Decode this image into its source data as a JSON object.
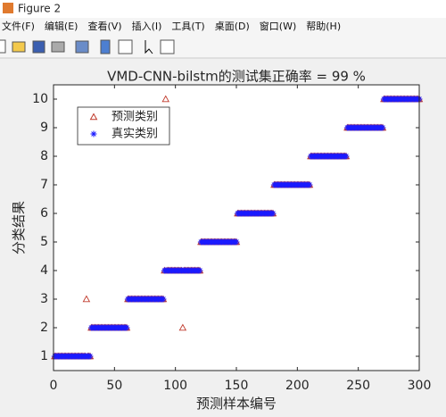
{
  "window": {
    "title": "Figure 2",
    "menu": [
      "文件(F)",
      "编辑(E)",
      "查看(V)",
      "插入(I)",
      "工具(T)",
      "桌面(D)",
      "窗口(W)",
      "帮助(H)"
    ]
  },
  "chart_data": {
    "type": "scatter",
    "title": "VMD-CNN-bilstm的测试集正确率 = 99 %",
    "xlabel": "预测样本编号",
    "ylabel": "分类结果",
    "xlim": [
      0,
      300
    ],
    "ylim": [
      0.5,
      10.5
    ],
    "xticks": [
      0,
      50,
      100,
      150,
      200,
      250,
      300
    ],
    "yticks": [
      1,
      2,
      3,
      4,
      5,
      6,
      7,
      8,
      9,
      10
    ],
    "legend": "top-left",
    "x": [
      1,
      2,
      3,
      4,
      5,
      6,
      7,
      8,
      9,
      10,
      11,
      12,
      13,
      14,
      15,
      16,
      17,
      18,
      19,
      20,
      21,
      22,
      23,
      24,
      25,
      26,
      27,
      28,
      29,
      30,
      31,
      32,
      33,
      34,
      35,
      36,
      37,
      38,
      39,
      40,
      41,
      42,
      43,
      44,
      45,
      46,
      47,
      48,
      49,
      50,
      51,
      52,
      53,
      54,
      55,
      56,
      57,
      58,
      59,
      60,
      61,
      62,
      63,
      64,
      65,
      66,
      67,
      68,
      69,
      70,
      71,
      72,
      73,
      74,
      75,
      76,
      77,
      78,
      79,
      80,
      81,
      82,
      83,
      84,
      85,
      86,
      87,
      88,
      89,
      90,
      91,
      92,
      93,
      94,
      95,
      96,
      97,
      98,
      99,
      100,
      101,
      102,
      103,
      104,
      105,
      106,
      107,
      108,
      109,
      110,
      111,
      112,
      113,
      114,
      115,
      116,
      117,
      118,
      119,
      120,
      121,
      122,
      123,
      124,
      125,
      126,
      127,
      128,
      129,
      130,
      131,
      132,
      133,
      134,
      135,
      136,
      137,
      138,
      139,
      140,
      141,
      142,
      143,
      144,
      145,
      146,
      147,
      148,
      149,
      150,
      151,
      152,
      153,
      154,
      155,
      156,
      157,
      158,
      159,
      160,
      161,
      162,
      163,
      164,
      165,
      166,
      167,
      168,
      169,
      170,
      171,
      172,
      173,
      174,
      175,
      176,
      177,
      178,
      179,
      180,
      181,
      182,
      183,
      184,
      185,
      186,
      187,
      188,
      189,
      190,
      191,
      192,
      193,
      194,
      195,
      196,
      197,
      198,
      199,
      200,
      201,
      202,
      203,
      204,
      205,
      206,
      207,
      208,
      209,
      210,
      211,
      212,
      213,
      214,
      215,
      216,
      217,
      218,
      219,
      220,
      221,
      222,
      223,
      224,
      225,
      226,
      227,
      228,
      229,
      230,
      231,
      232,
      233,
      234,
      235,
      236,
      237,
      238,
      239,
      240,
      241,
      242,
      243,
      244,
      245,
      246,
      247,
      248,
      249,
      250,
      251,
      252,
      253,
      254,
      255,
      256,
      257,
      258,
      259,
      260,
      261,
      262,
      263,
      264,
      265,
      266,
      267,
      268,
      269,
      270,
      271,
      272,
      273,
      274,
      275,
      276,
      277,
      278,
      279,
      280,
      281,
      282,
      283,
      284,
      285,
      286,
      287,
      288,
      289,
      290,
      291,
      292,
      293,
      294,
      295,
      296,
      297,
      298,
      299,
      300
    ],
    "series": [
      {
        "name": "预测类别",
        "color": "#c0392b",
        "marker": "triangle",
        "values": [
          1,
          1,
          1,
          1,
          1,
          1,
          1,
          1,
          1,
          1,
          1,
          1,
          1,
          1,
          1,
          1,
          1,
          1,
          1,
          1,
          1,
          1,
          1,
          1,
          1,
          1,
          3,
          1,
          1,
          1,
          2,
          2,
          2,
          2,
          2,
          2,
          2,
          2,
          2,
          2,
          2,
          2,
          2,
          2,
          2,
          2,
          2,
          2,
          2,
          2,
          2,
          2,
          2,
          2,
          2,
          2,
          2,
          2,
          2,
          2,
          3,
          3,
          3,
          3,
          3,
          3,
          3,
          3,
          3,
          3,
          3,
          3,
          3,
          3,
          3,
          3,
          3,
          3,
          3,
          3,
          3,
          3,
          3,
          3,
          3,
          3,
          3,
          3,
          3,
          3,
          4,
          10,
          4,
          4,
          4,
          4,
          4,
          4,
          4,
          4,
          4,
          4,
          4,
          4,
          4,
          2,
          4,
          4,
          4,
          4,
          4,
          4,
          4,
          4,
          4,
          4,
          4,
          4,
          4,
          4,
          5,
          5,
          5,
          5,
          5,
          5,
          5,
          5,
          5,
          5,
          5,
          5,
          5,
          5,
          5,
          5,
          5,
          5,
          5,
          5,
          5,
          5,
          5,
          5,
          5,
          5,
          5,
          5,
          5,
          5,
          6,
          6,
          6,
          6,
          6,
          6,
          6,
          6,
          6,
          6,
          6,
          6,
          6,
          6,
          6,
          6,
          6,
          6,
          6,
          6,
          6,
          6,
          6,
          6,
          6,
          6,
          6,
          6,
          6,
          6,
          7,
          7,
          7,
          7,
          7,
          7,
          7,
          7,
          7,
          7,
          7,
          7,
          7,
          7,
          7,
          7,
          7,
          7,
          7,
          7,
          7,
          7,
          7,
          7,
          7,
          7,
          7,
          7,
          7,
          7,
          8,
          8,
          8,
          8,
          8,
          8,
          8,
          8,
          8,
          8,
          8,
          8,
          8,
          8,
          8,
          8,
          8,
          8,
          8,
          8,
          8,
          8,
          8,
          8,
          8,
          8,
          8,
          8,
          8,
          8,
          9,
          9,
          9,
          9,
          9,
          9,
          9,
          9,
          9,
          9,
          9,
          9,
          9,
          9,
          9,
          9,
          9,
          9,
          9,
          9,
          9,
          9,
          9,
          9,
          9,
          9,
          9,
          9,
          9,
          9,
          10,
          10,
          10,
          10,
          10,
          10,
          10,
          10,
          10,
          10,
          10,
          10,
          10,
          10,
          10,
          10,
          10,
          10,
          10,
          10,
          10,
          10,
          10,
          10,
          10,
          10,
          10,
          10,
          10,
          10
        ]
      },
      {
        "name": "真实类别",
        "color": "#1a1aff",
        "marker": "asterisk",
        "values": [
          1,
          1,
          1,
          1,
          1,
          1,
          1,
          1,
          1,
          1,
          1,
          1,
          1,
          1,
          1,
          1,
          1,
          1,
          1,
          1,
          1,
          1,
          1,
          1,
          1,
          1,
          1,
          1,
          1,
          1,
          2,
          2,
          2,
          2,
          2,
          2,
          2,
          2,
          2,
          2,
          2,
          2,
          2,
          2,
          2,
          2,
          2,
          2,
          2,
          2,
          2,
          2,
          2,
          2,
          2,
          2,
          2,
          2,
          2,
          2,
          3,
          3,
          3,
          3,
          3,
          3,
          3,
          3,
          3,
          3,
          3,
          3,
          3,
          3,
          3,
          3,
          3,
          3,
          3,
          3,
          3,
          3,
          3,
          3,
          3,
          3,
          3,
          3,
          3,
          3,
          4,
          4,
          4,
          4,
          4,
          4,
          4,
          4,
          4,
          4,
          4,
          4,
          4,
          4,
          4,
          4,
          4,
          4,
          4,
          4,
          4,
          4,
          4,
          4,
          4,
          4,
          4,
          4,
          4,
          4,
          5,
          5,
          5,
          5,
          5,
          5,
          5,
          5,
          5,
          5,
          5,
          5,
          5,
          5,
          5,
          5,
          5,
          5,
          5,
          5,
          5,
          5,
          5,
          5,
          5,
          5,
          5,
          5,
          5,
          5,
          6,
          6,
          6,
          6,
          6,
          6,
          6,
          6,
          6,
          6,
          6,
          6,
          6,
          6,
          6,
          6,
          6,
          6,
          6,
          6,
          6,
          6,
          6,
          6,
          6,
          6,
          6,
          6,
          6,
          6,
          7,
          7,
          7,
          7,
          7,
          7,
          7,
          7,
          7,
          7,
          7,
          7,
          7,
          7,
          7,
          7,
          7,
          7,
          7,
          7,
          7,
          7,
          7,
          7,
          7,
          7,
          7,
          7,
          7,
          7,
          8,
          8,
          8,
          8,
          8,
          8,
          8,
          8,
          8,
          8,
          8,
          8,
          8,
          8,
          8,
          8,
          8,
          8,
          8,
          8,
          8,
          8,
          8,
          8,
          8,
          8,
          8,
          8,
          8,
          8,
          9,
          9,
          9,
          9,
          9,
          9,
          9,
          9,
          9,
          9,
          9,
          9,
          9,
          9,
          9,
          9,
          9,
          9,
          9,
          9,
          9,
          9,
          9,
          9,
          9,
          9,
          9,
          9,
          9,
          9,
          10,
          10,
          10,
          10,
          10,
          10,
          10,
          10,
          10,
          10,
          10,
          10,
          10,
          10,
          10,
          10,
          10,
          10,
          10,
          10,
          10,
          10,
          10,
          10,
          10,
          10,
          10,
          10,
          10,
          10
        ]
      }
    ]
  }
}
